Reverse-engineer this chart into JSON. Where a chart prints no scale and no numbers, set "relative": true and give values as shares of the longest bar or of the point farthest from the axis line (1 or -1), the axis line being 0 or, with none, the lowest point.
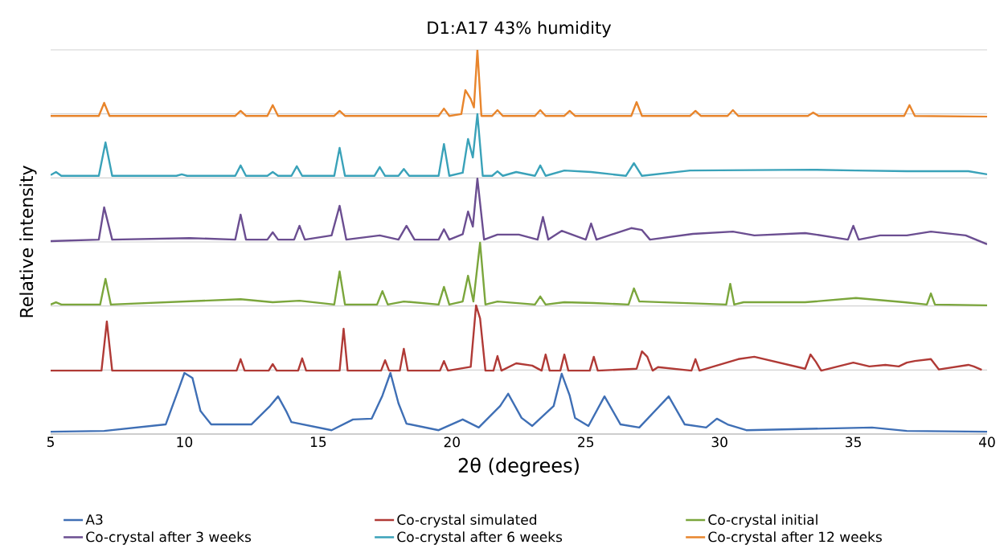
{
  "chart_data": {
    "type": "line",
    "title": "D1:A17 43% humidity",
    "xlabel": "2θ (degrees)",
    "ylabel": "Relative intensity",
    "relative": true,
    "xlim": [
      5,
      40
    ],
    "xticks": [
      5,
      10,
      15,
      20,
      25,
      30,
      35,
      40
    ],
    "grid": "y",
    "legend": "bottom",
    "marker": "none",
    "line_style": "solid",
    "series": [
      {
        "name": "A3",
        "color": "#3f6fb5",
        "x": [
          5,
          7,
          9.3,
          9.8,
          10.0,
          10.3,
          10.6,
          11.0,
          12.5,
          13.2,
          13.5,
          13.8,
          14.0,
          15.5,
          16.3,
          17.0,
          17.4,
          17.7,
          18.0,
          18.3,
          19.5,
          20.4,
          21.0,
          21.8,
          22.1,
          22.6,
          23.0,
          23.8,
          24.1,
          24.4,
          24.6,
          25.1,
          25.7,
          26.3,
          27.0,
          28.1,
          28.7,
          29.5,
          29.9,
          30.3,
          31.0,
          35.7,
          37,
          40
        ],
        "values": [
          0.006,
          0.008,
          0.025,
          0.12,
          0.159,
          0.146,
          0.06,
          0.025,
          0.025,
          0.073,
          0.098,
          0.06,
          0.031,
          0.01,
          0.038,
          0.04,
          0.1,
          0.159,
          0.08,
          0.027,
          0.01,
          0.038,
          0.017,
          0.073,
          0.105,
          0.042,
          0.021,
          0.073,
          0.157,
          0.1,
          0.042,
          0.021,
          0.098,
          0.025,
          0.017,
          0.098,
          0.025,
          0.017,
          0.04,
          0.025,
          0.01,
          0.017,
          0.008,
          0.006
        ]
      },
      {
        "name": "Co-crystal simulated",
        "color": "#b03a36",
        "x": [
          5,
          6.9,
          7.1,
          7.3,
          11.95,
          12.1,
          12.25,
          13.15,
          13.3,
          13.45,
          14.25,
          14.4,
          14.55,
          15.8,
          15.95,
          16.1,
          17.35,
          17.5,
          17.65,
          18.05,
          18.2,
          18.35,
          19.55,
          19.7,
          19.85,
          20.7,
          20.9,
          21.05,
          21.25,
          21.55,
          21.7,
          21.85,
          22.4,
          23.0,
          23.35,
          23.5,
          23.65,
          24.05,
          24.2,
          24.35,
          25.15,
          25.3,
          25.45,
          26.9,
          27.1,
          27.3,
          27.5,
          27.7,
          28.95,
          29.1,
          29.25,
          30.7,
          31.3,
          33.2,
          33.4,
          33.6,
          33.8,
          35.0,
          35.6,
          36.2,
          36.7,
          37.0,
          37.3,
          37.9,
          38.2,
          39.3,
          39.5,
          39.8
        ],
        "values": [
          0.165,
          0.165,
          0.293,
          0.165,
          0.165,
          0.195,
          0.165,
          0.165,
          0.182,
          0.165,
          0.165,
          0.197,
          0.165,
          0.165,
          0.274,
          0.165,
          0.165,
          0.192,
          0.165,
          0.165,
          0.222,
          0.165,
          0.165,
          0.19,
          0.165,
          0.175,
          0.335,
          0.301,
          0.165,
          0.165,
          0.203,
          0.165,
          0.184,
          0.178,
          0.165,
          0.207,
          0.165,
          0.165,
          0.207,
          0.165,
          0.165,
          0.201,
          0.165,
          0.17,
          0.215,
          0.201,
          0.165,
          0.174,
          0.165,
          0.195,
          0.165,
          0.195,
          0.201,
          0.17,
          0.207,
          0.188,
          0.165,
          0.186,
          0.176,
          0.18,
          0.176,
          0.186,
          0.19,
          0.195,
          0.168,
          0.18,
          0.176,
          0.167
        ]
      },
      {
        "name": "Co-crystal initial",
        "color": "#7ba63c",
        "x": [
          5,
          5.2,
          5.4,
          6.85,
          7.05,
          7.25,
          12.1,
          13.3,
          14.3,
          15.6,
          15.8,
          16.0,
          17.2,
          17.4,
          17.6,
          18.2,
          19.5,
          19.7,
          19.9,
          20.4,
          20.6,
          20.8,
          21.05,
          21.25,
          21.7,
          23.1,
          23.3,
          23.5,
          24.2,
          25.3,
          26.6,
          26.8,
          27.0,
          27.1,
          30.25,
          30.4,
          30.55,
          30.9,
          33.2,
          35.1,
          36.9,
          37.75,
          37.9,
          38.05,
          40
        ],
        "values": [
          0.337,
          0.343,
          0.337,
          0.337,
          0.404,
          0.337,
          0.351,
          0.343,
          0.347,
          0.337,
          0.423,
          0.337,
          0.337,
          0.372,
          0.337,
          0.345,
          0.337,
          0.383,
          0.337,
          0.345,
          0.412,
          0.345,
          0.498,
          0.337,
          0.345,
          0.337,
          0.358,
          0.337,
          0.343,
          0.341,
          0.337,
          0.379,
          0.345,
          0.345,
          0.337,
          0.391,
          0.337,
          0.343,
          0.343,
          0.354,
          0.343,
          0.337,
          0.366,
          0.337,
          0.335
        ]
      },
      {
        "name": "Co-crystal after 3 weeks",
        "color": "#6b4e91",
        "x": [
          5,
          6.8,
          7.0,
          7.3,
          10.2,
          11.9,
          12.1,
          12.3,
          13.1,
          13.3,
          13.5,
          14.1,
          14.3,
          14.5,
          15.5,
          15.8,
          16.05,
          17.3,
          18.0,
          18.3,
          18.6,
          19.5,
          19.7,
          19.9,
          20.4,
          20.6,
          20.78,
          20.95,
          21.2,
          21.7,
          22.5,
          23.2,
          23.4,
          23.6,
          24.1,
          25.0,
          25.2,
          25.4,
          26.7,
          27.1,
          27.4,
          29.0,
          30.5,
          31.3,
          33.2,
          33.6,
          34.8,
          35.0,
          35.2,
          36.0,
          37.0,
          37.9,
          39.2,
          40
        ],
        "values": [
          0.502,
          0.506,
          0.59,
          0.506,
          0.51,
          0.506,
          0.571,
          0.506,
          0.506,
          0.525,
          0.506,
          0.506,
          0.542,
          0.506,
          0.517,
          0.594,
          0.506,
          0.517,
          0.506,
          0.542,
          0.506,
          0.506,
          0.533,
          0.506,
          0.52,
          0.579,
          0.54,
          0.665,
          0.506,
          0.519,
          0.519,
          0.506,
          0.565,
          0.506,
          0.529,
          0.506,
          0.548,
          0.506,
          0.536,
          0.531,
          0.506,
          0.521,
          0.527,
          0.517,
          0.523,
          0.519,
          0.506,
          0.542,
          0.506,
          0.517,
          0.517,
          0.527,
          0.517,
          0.494
        ]
      },
      {
        "name": "Co-crystal after 6 weeks",
        "color": "#3aa2b9",
        "x": [
          5,
          5.2,
          5.4,
          6.8,
          7.05,
          7.3,
          9.7,
          9.9,
          10.1,
          11.9,
          12.1,
          12.3,
          13.1,
          13.3,
          13.5,
          14.0,
          14.2,
          14.4,
          15.6,
          15.8,
          16.0,
          17.1,
          17.3,
          17.5,
          18.0,
          18.2,
          18.4,
          19.5,
          19.7,
          19.9,
          20.4,
          20.6,
          20.78,
          20.95,
          21.15,
          21.5,
          21.7,
          21.9,
          22.4,
          23.1,
          23.3,
          23.5,
          24.2,
          25.2,
          26.5,
          26.8,
          27.1,
          28.9,
          33.5,
          35.1,
          37.0,
          37.8,
          39.3,
          40
        ],
        "values": [
          0.674,
          0.682,
          0.672,
          0.672,
          0.759,
          0.672,
          0.672,
          0.676,
          0.672,
          0.672,
          0.699,
          0.672,
          0.672,
          0.682,
          0.672,
          0.672,
          0.697,
          0.672,
          0.672,
          0.745,
          0.672,
          0.672,
          0.695,
          0.672,
          0.672,
          0.69,
          0.672,
          0.672,
          0.755,
          0.672,
          0.68,
          0.768,
          0.72,
          0.833,
          0.672,
          0.672,
          0.684,
          0.672,
          0.682,
          0.672,
          0.699,
          0.672,
          0.686,
          0.682,
          0.672,
          0.705,
          0.672,
          0.686,
          0.688,
          0.686,
          0.684,
          0.684,
          0.684,
          0.676
        ]
      },
      {
        "name": "Co-crystal after 12 weeks",
        "color": "#e8852c",
        "x": [
          5,
          6.8,
          7.0,
          7.2,
          11.9,
          12.1,
          12.3,
          13.1,
          13.3,
          13.5,
          15.6,
          15.8,
          16.0,
          19.5,
          19.7,
          19.9,
          20.35,
          20.5,
          20.7,
          20.82,
          20.95,
          21.1,
          21.5,
          21.7,
          21.9,
          23.1,
          23.3,
          23.5,
          24.2,
          24.4,
          24.6,
          26.7,
          26.9,
          27.1,
          28.9,
          29.1,
          29.3,
          30.3,
          30.5,
          30.7,
          33.3,
          33.5,
          33.7,
          36.9,
          37.1,
          37.3,
          40
        ],
        "values": [
          0.828,
          0.828,
          0.862,
          0.828,
          0.828,
          0.841,
          0.828,
          0.828,
          0.856,
          0.828,
          0.828,
          0.841,
          0.828,
          0.828,
          0.847,
          0.828,
          0.833,
          0.895,
          0.872,
          0.85,
          1.0,
          0.828,
          0.828,
          0.843,
          0.828,
          0.828,
          0.843,
          0.828,
          0.828,
          0.841,
          0.828,
          0.828,
          0.864,
          0.828,
          0.828,
          0.841,
          0.828,
          0.828,
          0.843,
          0.828,
          0.828,
          0.837,
          0.828,
          0.828,
          0.856,
          0.828,
          0.826
        ]
      }
    ]
  }
}
